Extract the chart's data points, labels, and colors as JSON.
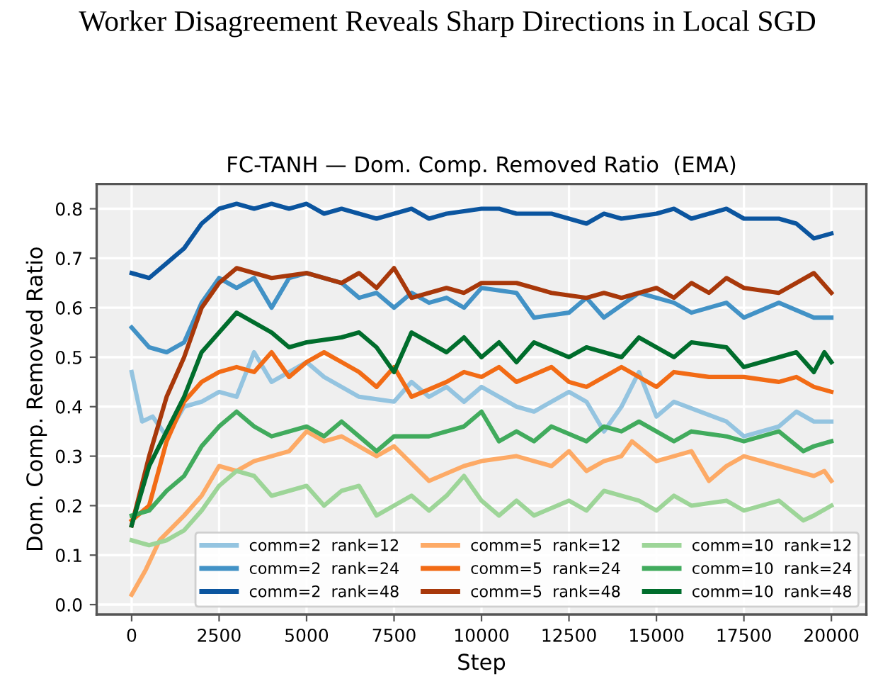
{
  "chart_data": {
    "type": "line",
    "title": "Worker Disagreement Reveals Sharp Directions in Local SGD",
    "subtitle": "FC-TANH — Dom. Comp. Removed Ratio  (EMA)",
    "xlabel": "Step",
    "ylabel": "Dom. Comp. Removed Ratio",
    "xlim": [
      -1000,
      21000
    ],
    "ylim": [
      -0.02,
      0.85
    ],
    "xticks": [
      0,
      2500,
      5000,
      7500,
      10000,
      12500,
      15000,
      17500,
      20000
    ],
    "yticks": [
      {
        "value": 0,
        "label": "0.0"
      },
      0.1,
      0.2,
      0.3,
      0.4,
      0.5,
      0.6,
      0.7,
      0.8
    ],
    "grid": true,
    "legend": "bottom right",
    "line_style": "solid",
    "marker": "none",
    "series": [
      {
        "name": "comm=2  rank=12",
        "color": "#94c4e0",
        "x": [
          0,
          300,
          600,
          1000,
          1500,
          2000,
          2500,
          3000,
          3500,
          4000,
          4500,
          5000,
          5500,
          6500,
          7500,
          8000,
          8500,
          9000,
          9500,
          10000,
          11000,
          11500,
          12500,
          13000,
          13500,
          14000,
          14500,
          15000,
          15500,
          17000,
          17500,
          18500,
          19000,
          19500,
          20000
        ],
        "values": [
          0.47,
          0.37,
          0.38,
          0.34,
          0.4,
          0.41,
          0.43,
          0.42,
          0.51,
          0.45,
          0.47,
          0.49,
          0.46,
          0.42,
          0.41,
          0.45,
          0.42,
          0.44,
          0.41,
          0.44,
          0.4,
          0.39,
          0.43,
          0.41,
          0.35,
          0.4,
          0.47,
          0.38,
          0.41,
          0.37,
          0.34,
          0.36,
          0.39,
          0.37,
          0.37
        ]
      },
      {
        "name": "comm=2  rank=24",
        "color": "#4292c6",
        "x": [
          0,
          500,
          1000,
          1500,
          2000,
          2500,
          3000,
          3500,
          4000,
          4500,
          5000,
          6000,
          6500,
          7000,
          7500,
          8000,
          8500,
          9000,
          9500,
          10000,
          11000,
          11500,
          12500,
          13000,
          13500,
          14500,
          15500,
          16000,
          17000,
          17500,
          18500,
          19500,
          20000
        ],
        "values": [
          0.56,
          0.52,
          0.51,
          0.53,
          0.61,
          0.66,
          0.64,
          0.66,
          0.6,
          0.66,
          0.67,
          0.65,
          0.62,
          0.63,
          0.6,
          0.63,
          0.61,
          0.62,
          0.6,
          0.64,
          0.63,
          0.58,
          0.59,
          0.62,
          0.58,
          0.63,
          0.61,
          0.59,
          0.61,
          0.58,
          0.61,
          0.58,
          0.58
        ]
      },
      {
        "name": "comm=2  rank=48",
        "color": "#0b559f",
        "x": [
          0,
          500,
          1000,
          1500,
          2000,
          2500,
          3000,
          3500,
          4000,
          4500,
          5000,
          5500,
          6000,
          6500,
          7000,
          7500,
          8000,
          8500,
          9000,
          10000,
          10500,
          11000,
          12000,
          12500,
          13000,
          13500,
          14000,
          15000,
          15500,
          16000,
          17000,
          17500,
          18500,
          19000,
          19500,
          20000
        ],
        "values": [
          0.67,
          0.66,
          0.69,
          0.72,
          0.77,
          0.8,
          0.81,
          0.8,
          0.81,
          0.8,
          0.81,
          0.79,
          0.8,
          0.79,
          0.78,
          0.79,
          0.8,
          0.78,
          0.79,
          0.8,
          0.8,
          0.79,
          0.79,
          0.78,
          0.77,
          0.79,
          0.78,
          0.79,
          0.8,
          0.78,
          0.8,
          0.78,
          0.78,
          0.77,
          0.74,
          0.75
        ]
      },
      {
        "name": "comm=5  rank=12",
        "color": "#fdaa66",
        "x": [
          0,
          400,
          800,
          1500,
          2000,
          2500,
          3000,
          3500,
          4500,
          5000,
          5500,
          6000,
          7000,
          7500,
          8500,
          9500,
          10000,
          11000,
          12000,
          12500,
          13000,
          13500,
          14000,
          14300,
          15000,
          16000,
          16500,
          17000,
          17500,
          18500,
          19000,
          19500,
          19800,
          20000
        ],
        "values": [
          0.02,
          0.07,
          0.13,
          0.18,
          0.22,
          0.28,
          0.27,
          0.29,
          0.31,
          0.35,
          0.33,
          0.34,
          0.3,
          0.32,
          0.25,
          0.28,
          0.29,
          0.3,
          0.28,
          0.31,
          0.27,
          0.29,
          0.3,
          0.33,
          0.29,
          0.31,
          0.25,
          0.28,
          0.3,
          0.28,
          0.27,
          0.26,
          0.27,
          0.25
        ]
      },
      {
        "name": "comm=5  rank=24",
        "color": "#f26b15",
        "x": [
          0,
          500,
          1000,
          1500,
          2000,
          2500,
          3000,
          3500,
          4000,
          4500,
          5000,
          5500,
          6000,
          6500,
          7000,
          7500,
          8000,
          9000,
          9500,
          10000,
          10500,
          11000,
          12000,
          12500,
          13000,
          14000,
          15000,
          15500,
          16500,
          17500,
          18500,
          19000,
          19500,
          20000
        ],
        "values": [
          0.17,
          0.2,
          0.33,
          0.41,
          0.45,
          0.47,
          0.48,
          0.47,
          0.51,
          0.46,
          0.49,
          0.51,
          0.49,
          0.47,
          0.44,
          0.48,
          0.42,
          0.45,
          0.47,
          0.46,
          0.48,
          0.45,
          0.48,
          0.45,
          0.44,
          0.48,
          0.44,
          0.47,
          0.46,
          0.46,
          0.45,
          0.46,
          0.44,
          0.43
        ]
      },
      {
        "name": "comm=5  rank=48",
        "color": "#a8380a",
        "x": [
          0,
          500,
          1000,
          1500,
          2000,
          2500,
          3000,
          3500,
          4000,
          5000,
          5500,
          6000,
          6500,
          7000,
          7500,
          8000,
          9000,
          9500,
          10000,
          11000,
          12000,
          13000,
          13500,
          14000,
          15000,
          15500,
          16000,
          16500,
          17000,
          17500,
          18500,
          19500,
          20000
        ],
        "values": [
          0.16,
          0.3,
          0.42,
          0.5,
          0.6,
          0.65,
          0.68,
          0.67,
          0.66,
          0.67,
          0.66,
          0.65,
          0.67,
          0.64,
          0.68,
          0.62,
          0.64,
          0.63,
          0.65,
          0.65,
          0.63,
          0.62,
          0.63,
          0.62,
          0.64,
          0.62,
          0.65,
          0.63,
          0.66,
          0.64,
          0.63,
          0.67,
          0.63
        ]
      },
      {
        "name": "comm=10  rank=12",
        "color": "#9dd598",
        "x": [
          0,
          500,
          1000,
          1500,
          2000,
          2500,
          3000,
          3500,
          4000,
          5000,
          5500,
          6000,
          6500,
          7000,
          8000,
          8500,
          9000,
          9500,
          10000,
          10500,
          11000,
          11500,
          12500,
          13000,
          13500,
          14500,
          15000,
          15500,
          16000,
          17000,
          17500,
          18500,
          19200,
          19500,
          20000
        ],
        "values": [
          0.13,
          0.12,
          0.13,
          0.15,
          0.19,
          0.24,
          0.27,
          0.26,
          0.22,
          0.24,
          0.2,
          0.23,
          0.24,
          0.18,
          0.22,
          0.19,
          0.22,
          0.26,
          0.21,
          0.18,
          0.21,
          0.18,
          0.21,
          0.19,
          0.23,
          0.21,
          0.19,
          0.22,
          0.2,
          0.21,
          0.19,
          0.21,
          0.17,
          0.18,
          0.2
        ]
      },
      {
        "name": "comm=10  rank=24",
        "color": "#41ab5d",
        "x": [
          0,
          500,
          1000,
          1500,
          2000,
          2500,
          3000,
          3500,
          4000,
          5000,
          5500,
          6000,
          6500,
          7000,
          7500,
          8500,
          9500,
          10000,
          10500,
          11000,
          11500,
          12000,
          13000,
          13500,
          14000,
          14500,
          15500,
          16000,
          17000,
          17500,
          18500,
          19200,
          19500,
          20000
        ],
        "values": [
          0.18,
          0.19,
          0.23,
          0.26,
          0.32,
          0.36,
          0.39,
          0.36,
          0.34,
          0.36,
          0.34,
          0.37,
          0.34,
          0.31,
          0.34,
          0.34,
          0.36,
          0.39,
          0.33,
          0.35,
          0.33,
          0.36,
          0.33,
          0.36,
          0.35,
          0.37,
          0.33,
          0.35,
          0.34,
          0.33,
          0.35,
          0.31,
          0.32,
          0.33
        ]
      },
      {
        "name": "comm=10  rank=48",
        "color": "#006d2c",
        "x": [
          0,
          500,
          1000,
          1500,
          2000,
          2500,
          3000,
          4000,
          4500,
          5000,
          6000,
          6500,
          7000,
          7500,
          8000,
          9000,
          9500,
          10000,
          10500,
          11000,
          11500,
          12500,
          13000,
          14000,
          14500,
          15500,
          16000,
          17000,
          17500,
          18500,
          19000,
          19500,
          19800,
          20000
        ],
        "values": [
          0.16,
          0.28,
          0.35,
          0.42,
          0.51,
          0.55,
          0.59,
          0.55,
          0.52,
          0.53,
          0.54,
          0.55,
          0.52,
          0.47,
          0.55,
          0.51,
          0.54,
          0.5,
          0.53,
          0.49,
          0.53,
          0.5,
          0.52,
          0.5,
          0.54,
          0.5,
          0.53,
          0.52,
          0.48,
          0.5,
          0.51,
          0.47,
          0.51,
          0.49
        ]
      }
    ]
  }
}
